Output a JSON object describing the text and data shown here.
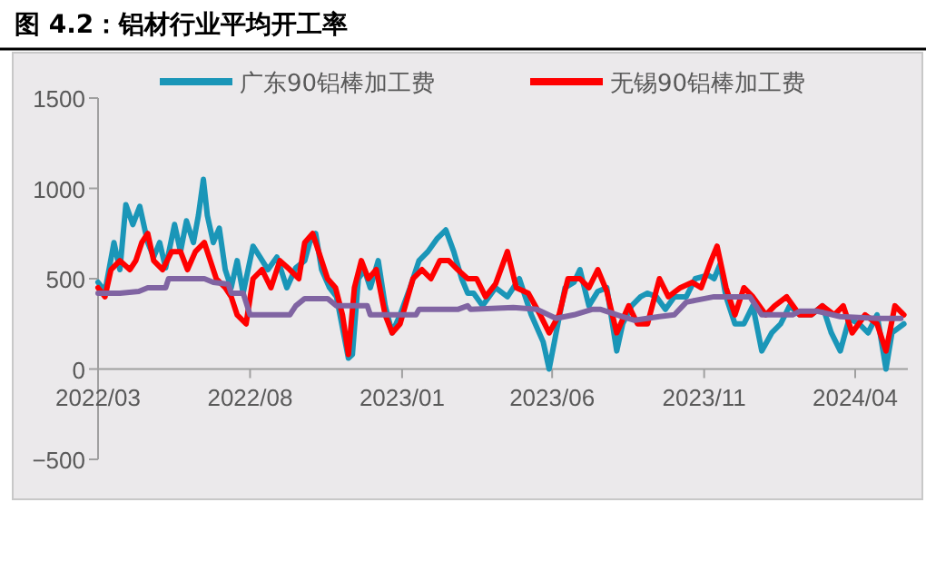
{
  "chart_data": {
    "type": "line",
    "title": "图 4.2：铝材行业平均开工率",
    "legend": "top",
    "grid": false,
    "marker": "none",
    "line_style": "solid",
    "xlim": [
      "2022-03-01",
      "2024-05-24"
    ],
    "xticks": [
      {
        "value": "2022-03-01",
        "label": "2022/03"
      },
      {
        "value": "2022-08-01",
        "label": "2022/08"
      },
      {
        "value": "2023-01-01",
        "label": "2023/01"
      },
      {
        "value": "2023-06-01",
        "label": "2023/06"
      },
      {
        "value": "2023-11-01",
        "label": "2023/11"
      },
      {
        "value": "2024-04-01",
        "label": "2024/04"
      }
    ],
    "ylim": [
      -500,
      1500
    ],
    "yticks": [
      -500,
      0,
      500,
      1000,
      1500
    ],
    "series": [
      {
        "name": "广东90铝棒加工费",
        "color": "#1a96b8",
        "x": [
          "2022-03-01",
          "2022-03-08",
          "2022-03-17",
          "2022-03-23",
          "2022-03-29",
          "2022-04-05",
          "2022-04-12",
          "2022-04-20",
          "2022-04-26",
          "2022-05-02",
          "2022-05-08",
          "2022-05-17",
          "2022-05-23",
          "2022-05-29",
          "2022-06-05",
          "2022-06-10",
          "2022-06-15",
          "2022-06-19",
          "2022-06-25",
          "2022-07-01",
          "2022-07-07",
          "2022-07-13",
          "2022-07-19",
          "2022-07-25",
          "2022-08-04",
          "2022-08-11",
          "2022-08-19",
          "2022-08-28",
          "2022-09-07",
          "2022-09-16",
          "2022-09-25",
          "2022-09-30",
          "2022-10-06",
          "2022-10-12",
          "2022-10-20",
          "2022-10-27",
          "2022-11-03",
          "2022-11-08",
          "2022-11-12",
          "2022-11-18",
          "2022-11-24",
          "2022-11-30",
          "2022-12-08",
          "2022-12-15",
          "2022-12-22",
          "2022-12-30",
          "2023-01-09",
          "2023-01-18",
          "2023-01-27",
          "2023-02-05",
          "2023-02-14",
          "2023-02-22",
          "2023-03-02",
          "2023-03-08",
          "2023-03-14",
          "2023-03-23",
          "2023-04-05",
          "2023-04-17",
          "2023-04-29",
          "2023-05-11",
          "2023-05-23",
          "2023-05-29",
          "2023-06-05",
          "2023-06-14",
          "2023-06-23",
          "2023-06-29",
          "2023-07-08",
          "2023-07-17",
          "2023-07-26",
          "2023-08-05",
          "2023-08-11",
          "2023-08-20",
          "2023-08-29",
          "2023-09-05",
          "2023-09-14",
          "2023-09-23",
          "2023-10-02",
          "2023-10-14",
          "2023-10-23",
          "2023-11-05",
          "2023-11-11",
          "2023-11-17",
          "2023-11-23",
          "2023-12-02",
          "2023-12-11",
          "2023-12-20",
          "2023-12-29",
          "2024-01-08",
          "2024-01-17",
          "2024-01-26",
          "2024-02-05",
          "2024-02-17",
          "2024-02-28",
          "2024-03-08",
          "2024-03-17",
          "2024-03-26",
          "2024-04-05",
          "2024-04-14",
          "2024-04-23",
          "2024-05-02",
          "2024-05-08",
          "2024-05-20"
        ],
        "values": [
          480,
          430,
          700,
          550,
          910,
          800,
          900,
          700,
          620,
          700,
          560,
          800,
          650,
          820,
          700,
          850,
          1050,
          850,
          700,
          780,
          550,
          450,
          600,
          420,
          680,
          620,
          550,
          620,
          450,
          560,
          600,
          700,
          750,
          550,
          450,
          400,
          200,
          60,
          80,
          500,
          550,
          450,
          600,
          350,
          200,
          300,
          450,
          600,
          650,
          720,
          770,
          650,
          500,
          420,
          420,
          350,
          450,
          400,
          500,
          300,
          150,
          0,
          200,
          450,
          480,
          550,
          350,
          430,
          450,
          100,
          250,
          350,
          400,
          420,
          400,
          330,
          400,
          400,
          500,
          520,
          500,
          580,
          400,
          250,
          250,
          350,
          100,
          200,
          250,
          350,
          300,
          300,
          350,
          200,
          100,
          280,
          250,
          200,
          300,
          0,
          200,
          250
        ]
      },
      {
        "name": "无锡90铝棒加工费",
        "color": "#ff0000",
        "x": [
          "2022-03-01",
          "2022-03-08",
          "2022-03-14",
          "2022-03-23",
          "2022-04-02",
          "2022-04-08",
          "2022-04-14",
          "2022-04-20",
          "2022-04-26",
          "2022-05-05",
          "2022-05-14",
          "2022-05-23",
          "2022-05-30",
          "2022-06-07",
          "2022-06-16",
          "2022-06-22",
          "2022-06-28",
          "2022-07-07",
          "2022-07-13",
          "2022-07-19",
          "2022-07-28",
          "2022-08-04",
          "2022-08-13",
          "2022-08-22",
          "2022-08-31",
          "2022-09-10",
          "2022-09-19",
          "2022-09-25",
          "2022-10-03",
          "2022-10-09",
          "2022-10-18",
          "2022-10-26",
          "2022-11-02",
          "2022-11-08",
          "2022-11-14",
          "2022-11-21",
          "2022-11-28",
          "2022-12-06",
          "2022-12-15",
          "2022-12-22",
          "2022-12-30",
          "2023-01-12",
          "2023-01-21",
          "2023-01-30",
          "2023-02-08",
          "2023-02-17",
          "2023-02-26",
          "2023-03-08",
          "2023-03-17",
          "2023-03-26",
          "2023-04-05",
          "2023-04-17",
          "2023-04-26",
          "2023-05-08",
          "2023-05-20",
          "2023-05-29",
          "2023-06-08",
          "2023-06-17",
          "2023-06-29",
          "2023-07-08",
          "2023-07-17",
          "2023-07-26",
          "2023-08-05",
          "2023-08-17",
          "2023-08-26",
          "2023-09-05",
          "2023-09-17",
          "2023-09-26",
          "2023-10-08",
          "2023-10-20",
          "2023-10-29",
          "2023-11-08",
          "2023-11-14",
          "2023-11-23",
          "2023-12-02",
          "2023-12-11",
          "2023-12-20",
          "2024-01-02",
          "2024-01-11",
          "2024-01-23",
          "2024-02-05",
          "2024-02-17",
          "2024-02-28",
          "2024-03-11",
          "2024-03-20",
          "2024-03-29",
          "2024-04-11",
          "2024-04-23",
          "2024-05-02",
          "2024-05-11",
          "2024-05-20"
        ],
        "values": [
          450,
          400,
          550,
          600,
          550,
          600,
          700,
          750,
          600,
          550,
          650,
          650,
          550,
          650,
          700,
          600,
          500,
          450,
          400,
          300,
          250,
          500,
          550,
          450,
          600,
          550,
          500,
          700,
          750,
          650,
          500,
          450,
          300,
          80,
          450,
          600,
          500,
          550,
          300,
          200,
          250,
          500,
          550,
          500,
          600,
          600,
          550,
          500,
          500,
          400,
          470,
          650,
          450,
          420,
          300,
          200,
          300,
          500,
          500,
          450,
          550,
          430,
          200,
          350,
          250,
          250,
          500,
          400,
          450,
          480,
          450,
          600,
          680,
          450,
          300,
          450,
          400,
          300,
          350,
          400,
          300,
          300,
          350,
          300,
          350,
          200,
          300,
          250,
          100,
          350,
          300
        ]
      },
      {
        "color": "#8064a2",
        "x": [
          "2022-03-01",
          "2022-03-23",
          "2022-04-11",
          "2022-04-20",
          "2022-05-08",
          "2022-05-11",
          "2022-06-16",
          "2022-06-25",
          "2022-07-10",
          "2022-07-13",
          "2022-07-25",
          "2022-08-01",
          "2022-09-10",
          "2022-09-16",
          "2022-09-25",
          "2022-10-18",
          "2022-10-27",
          "2022-11-27",
          "2022-11-30",
          "2023-01-15",
          "2023-01-18",
          "2023-02-26",
          "2023-03-08",
          "2023-03-11",
          "2023-04-23",
          "2023-05-17",
          "2023-06-05",
          "2023-06-23",
          "2023-07-11",
          "2023-07-20",
          "2023-08-11",
          "2023-08-23",
          "2023-09-17",
          "2023-10-02",
          "2023-10-14",
          "2023-10-23",
          "2023-11-11",
          "2023-12-17",
          "2023-12-29",
          "2024-01-29",
          "2024-02-05",
          "2024-02-23",
          "2024-03-17",
          "2024-04-23",
          "2024-05-17"
        ],
        "values": [
          420,
          420,
          430,
          450,
          450,
          500,
          500,
          480,
          470,
          420,
          420,
          300,
          300,
          350,
          390,
          390,
          350,
          350,
          300,
          300,
          330,
          330,
          350,
          330,
          340,
          330,
          280,
          300,
          330,
          330,
          290,
          270,
          290,
          300,
          370,
          380,
          400,
          400,
          300,
          300,
          320,
          320,
          290,
          280,
          280
        ]
      }
    ]
  }
}
